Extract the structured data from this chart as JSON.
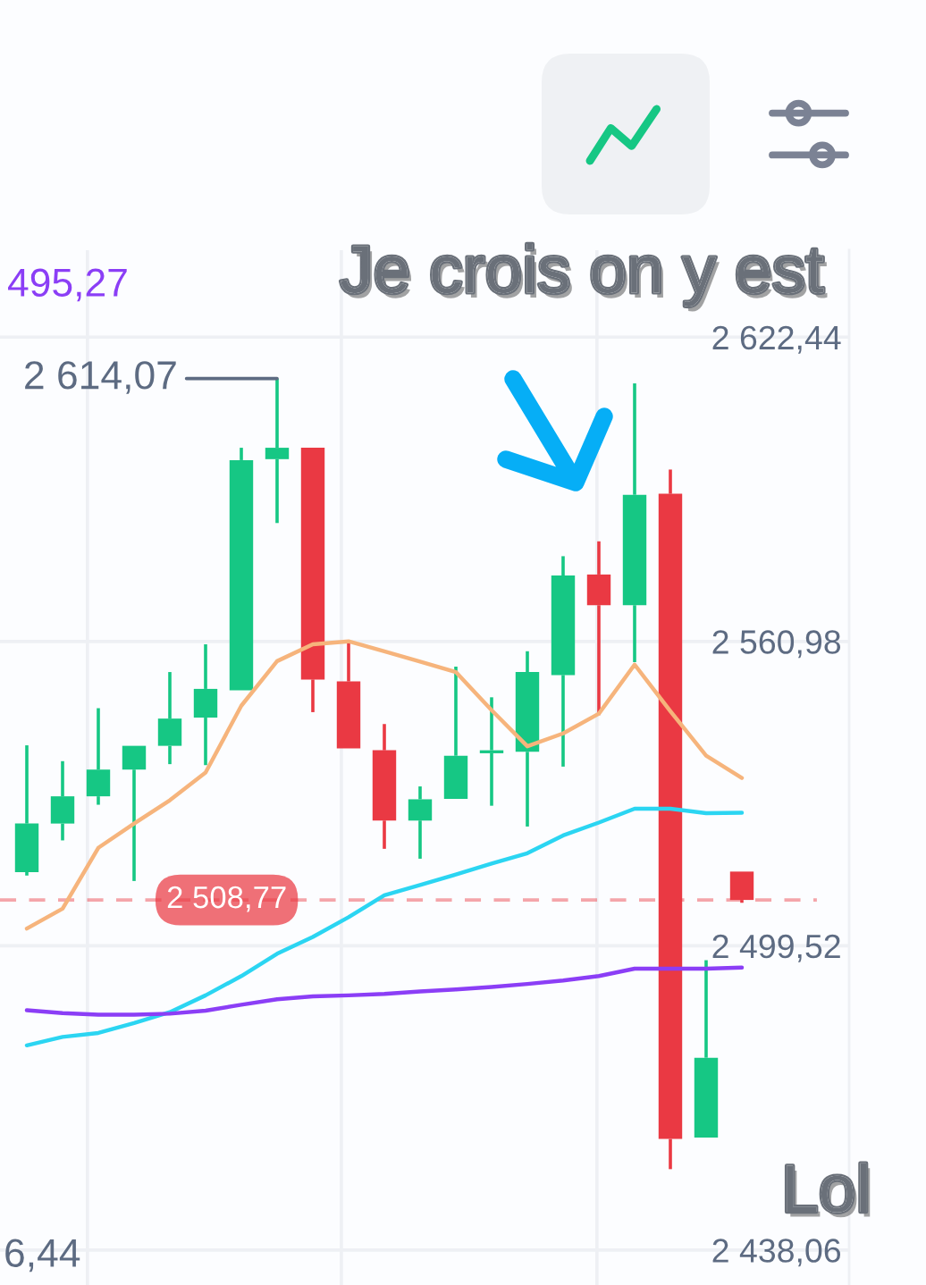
{
  "chart_data": {
    "type": "candlestick",
    "categories": [
      null,
      null,
      null,
      null,
      null,
      null,
      null,
      null,
      null,
      null,
      null,
      null,
      null,
      null,
      null,
      null,
      null,
      null,
      null,
      null,
      null
    ],
    "ohlc": [
      [
        2514.4,
        2540.0,
        2513.7,
        2524.2
      ],
      [
        2524.2,
        2536.8,
        2520.8,
        2529.7
      ],
      [
        2529.7,
        2547.5,
        2528.0,
        2535.1
      ],
      [
        2535.1,
        2539.9,
        2512.6,
        2539.9
      ],
      [
        2539.9,
        2554.8,
        2536.2,
        2545.4
      ],
      [
        2545.6,
        2560.4,
        2536.0,
        2551.4
      ],
      [
        2551.1,
        2600.1,
        2551.1,
        2597.6
      ],
      [
        2597.8,
        2614.07,
        2584.9,
        2600.1
      ],
      [
        2600.1,
        2600.1,
        2546.7,
        2553.3
      ],
      [
        2552.9,
        2561.2,
        2539.4,
        2539.4
      ],
      [
        2539.0,
        2544.3,
        2519.1,
        2524.8
      ],
      [
        2524.8,
        2531.7,
        2517.1,
        2529.1
      ],
      [
        2529.2,
        2555.9,
        2529.2,
        2537.9
      ],
      [
        2538.4,
        2549.7,
        2527.8,
        2539.0
      ],
      [
        2538.7,
        2559.0,
        2523.6,
        2554.8
      ],
      [
        2554.2,
        2578.2,
        2535.7,
        2574.3
      ],
      [
        2574.5,
        2581.2,
        2546.1,
        2568.3
      ],
      [
        2568.3,
        2613.1,
        2556.8,
        2590.6
      ],
      [
        2590.8,
        2595.7,
        2454.4,
        2460.5
      ],
      [
        2460.8,
        2496.6,
        2460.8,
        2476.9
      ],
      [
        2514.5,
        2514.5,
        2508.2,
        2508.77
      ]
    ],
    "colors": [
      "#16c784",
      "#16c784",
      "#16c784",
      "#16c784",
      "#16c784",
      "#16c784",
      "#16c784",
      "#16c784",
      "#ea3943",
      "#ea3943",
      "#ea3943",
      "#16c784",
      "#16c784",
      "#16c784",
      "#16c784",
      "#16c784",
      "#ea3943",
      "#16c784",
      "#ea3943",
      "#16c784",
      "#ea3943"
    ],
    "series": [
      {
        "type": "line",
        "color": "#f6b47c",
        "values": [
          2503.0,
          2507.0,
          2519.3,
          2524.2,
          2528.9,
          2534.5,
          2548.0,
          2557.0,
          2560.4,
          2561.0,
          2559.0,
          2556.9,
          2554.8,
          2547.1,
          2539.8,
          2542.4,
          2546.4,
          2556.3,
          2546.9,
          2537.9,
          2533.4
        ]
      },
      {
        "type": "line",
        "color": "#2bd5f2",
        "values": [
          2479.4,
          2481.1,
          2481.9,
          2483.9,
          2486.1,
          2489.5,
          2493.4,
          2497.9,
          2501.3,
          2505.3,
          2509.7,
          2511.8,
          2513.9,
          2516.1,
          2518.2,
          2521.8,
          2524.4,
          2527.2,
          2527.2,
          2526.3,
          2526.4
        ]
      },
      {
        "type": "line",
        "color": "#8b3ef6",
        "values": [
          2486.5,
          2485.9,
          2485.6,
          2485.6,
          2485.8,
          2486.4,
          2487.6,
          2488.7,
          2489.3,
          2489.5,
          2489.8,
          2490.3,
          2490.7,
          2491.2,
          2491.8,
          2492.5,
          2493.4,
          2494.9,
          2494.9,
          2494.9,
          2495.1
        ]
      }
    ],
    "ylim": [
      2431,
      2640
    ],
    "yticks": [
      {
        "value": 2622.44,
        "label": "2 622,44"
      },
      {
        "value": 2560.98,
        "label": "2 560,98"
      },
      {
        "value": 2499.52,
        "label": "2 499,52"
      },
      {
        "value": 2438.06,
        "label": "2 438,06"
      }
    ],
    "grid": true,
    "tick_labels": "y",
    "ref_lines": [
      {
        "axis": "y",
        "value": 2508.77,
        "label": "2 508,77",
        "color": "#ea3943",
        "line_style": "dashed"
      }
    ],
    "annotations": [
      "2 614,07",
      "Je crois on y est",
      "Lol",
      "495,27",
      "6,44"
    ]
  }
}
